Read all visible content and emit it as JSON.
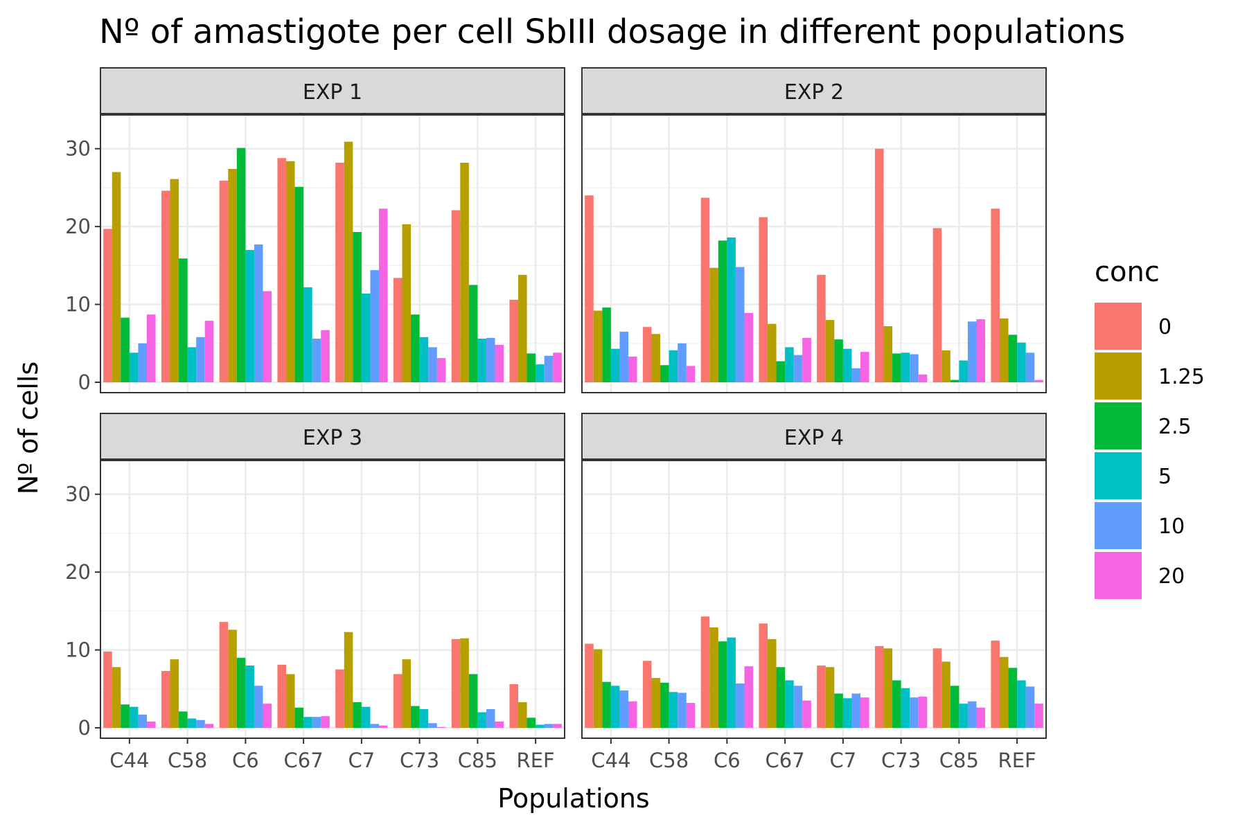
{
  "chart_data": {
    "type": "bar",
    "title": "Nº of amastigote per cell SbIII dosage in different populations",
    "xlabel": "Populations",
    "ylabel": "Nº of cells",
    "ylim": [
      0,
      33
    ],
    "yticks": [
      0,
      10,
      20,
      30
    ],
    "grid": true,
    "legend_position": "right",
    "legend_title": "conc",
    "categories": [
      "C44",
      "C58",
      "C6",
      "C67",
      "C7",
      "C73",
      "C85",
      "REF"
    ],
    "series_names": [
      "0",
      "1.25",
      "2.5",
      "5",
      "10",
      "20"
    ],
    "series_colors": [
      "#F8766D",
      "#B79F00",
      "#00BA38",
      "#00BFC4",
      "#619CFF",
      "#F564E3"
    ],
    "panels": [
      {
        "label": "EXP 1",
        "values": [
          [
            19.7,
            27.0,
            8.3,
            3.8,
            5.0,
            8.7
          ],
          [
            24.6,
            26.1,
            15.9,
            4.5,
            5.8,
            7.9
          ],
          [
            25.9,
            27.4,
            30.1,
            17.0,
            17.7,
            11.7
          ],
          [
            28.8,
            28.4,
            25.1,
            12.2,
            5.6,
            6.7
          ],
          [
            28.2,
            30.9,
            19.3,
            11.4,
            14.4,
            22.3
          ],
          [
            13.4,
            20.3,
            8.7,
            5.8,
            4.5,
            3.1
          ],
          [
            22.1,
            28.2,
            12.5,
            5.6,
            5.7,
            4.8
          ],
          [
            10.6,
            13.8,
            3.7,
            2.3,
            3.4,
            3.8
          ]
        ]
      },
      {
        "label": "EXP 2",
        "values": [
          [
            24.0,
            9.2,
            9.6,
            4.3,
            6.5,
            3.3
          ],
          [
            7.1,
            6.2,
            2.2,
            4.1,
            5.0,
            2.1
          ],
          [
            23.7,
            14.7,
            18.2,
            18.6,
            14.8,
            8.9
          ],
          [
            21.2,
            7.5,
            2.7,
            4.5,
            3.5,
            5.7
          ],
          [
            13.8,
            8.0,
            5.5,
            4.3,
            1.8,
            3.9
          ],
          [
            30.0,
            7.2,
            3.7,
            3.8,
            3.6,
            1.0
          ],
          [
            19.8,
            4.1,
            0.3,
            2.8,
            7.8,
            8.1
          ],
          [
            22.3,
            8.2,
            6.1,
            5.1,
            3.8,
            0.3
          ]
        ]
      },
      {
        "label": "EXP 3",
        "values": [
          [
            9.8,
            7.8,
            3.0,
            2.7,
            1.7,
            0.8
          ],
          [
            7.3,
            8.8,
            2.1,
            1.2,
            1.0,
            0.5
          ],
          [
            13.6,
            12.6,
            9.0,
            8.0,
            5.4,
            3.1
          ],
          [
            8.1,
            6.9,
            2.6,
            1.4,
            1.4,
            1.5
          ],
          [
            7.5,
            12.3,
            3.3,
            2.7,
            0.5,
            0.3
          ],
          [
            6.9,
            8.8,
            2.8,
            2.4,
            0.6,
            0.1
          ],
          [
            11.4,
            11.5,
            6.9,
            2.0,
            2.4,
            0.8
          ],
          [
            5.6,
            3.3,
            1.3,
            0.4,
            0.5,
            0.5
          ]
        ]
      },
      {
        "label": "EXP 4",
        "values": [
          [
            10.8,
            10.1,
            5.9,
            5.4,
            4.8,
            3.4
          ],
          [
            8.6,
            6.4,
            5.8,
            4.6,
            4.5,
            3.2
          ],
          [
            14.3,
            12.9,
            11.1,
            11.6,
            5.7,
            7.9
          ],
          [
            13.4,
            11.4,
            7.8,
            6.1,
            5.4,
            3.5
          ],
          [
            8.0,
            7.8,
            4.4,
            3.8,
            4.4,
            3.9
          ],
          [
            10.5,
            10.2,
            6.1,
            5.1,
            3.9,
            4.0
          ],
          [
            10.2,
            8.5,
            5.4,
            3.1,
            3.4,
            2.6
          ],
          [
            11.2,
            9.1,
            7.7,
            6.1,
            5.3,
            3.1
          ]
        ]
      }
    ]
  }
}
